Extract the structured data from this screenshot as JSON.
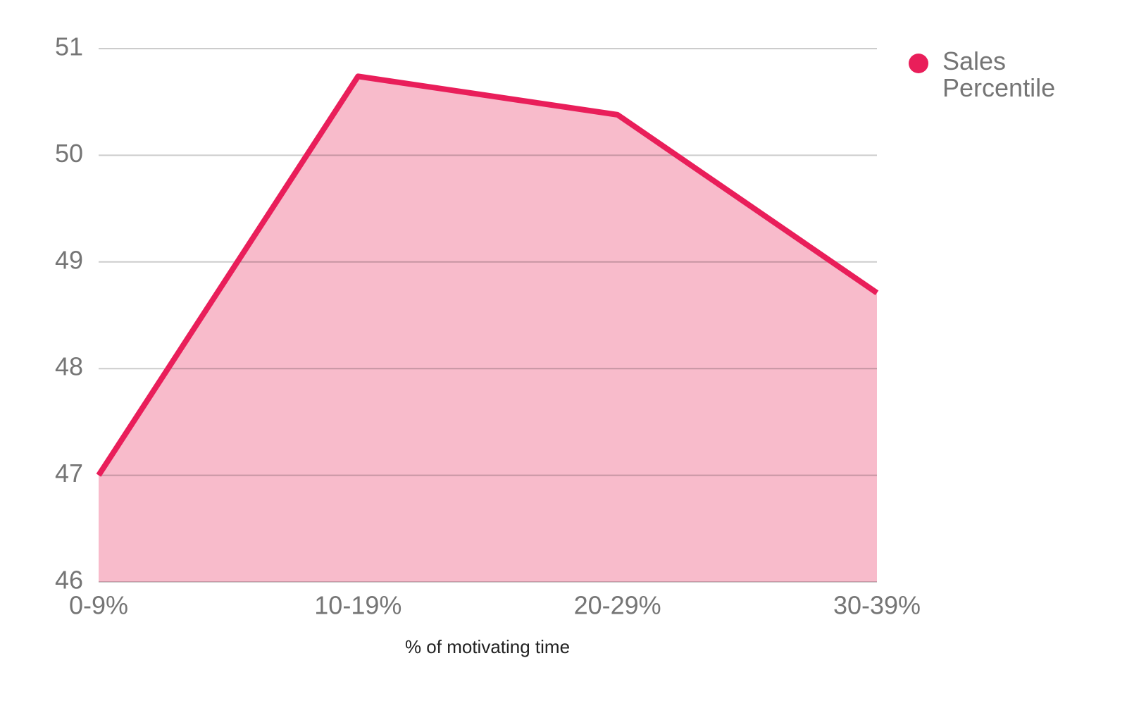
{
  "chart_data": {
    "type": "area",
    "categories": [
      "0-9%",
      "10-19%",
      "20-29%",
      "30-39%"
    ],
    "series": [
      {
        "name": "Sales Percentile",
        "color": "#e91e5a",
        "fill": "#f8bbcb",
        "values": [
          47.0,
          50.74,
          50.38,
          48.71
        ]
      }
    ],
    "x_label": "% of motivating time",
    "ylim": [
      46,
      51
    ],
    "yticks": [
      46,
      47,
      48,
      49,
      50,
      51
    ],
    "grid": true,
    "legend": "top-right"
  }
}
